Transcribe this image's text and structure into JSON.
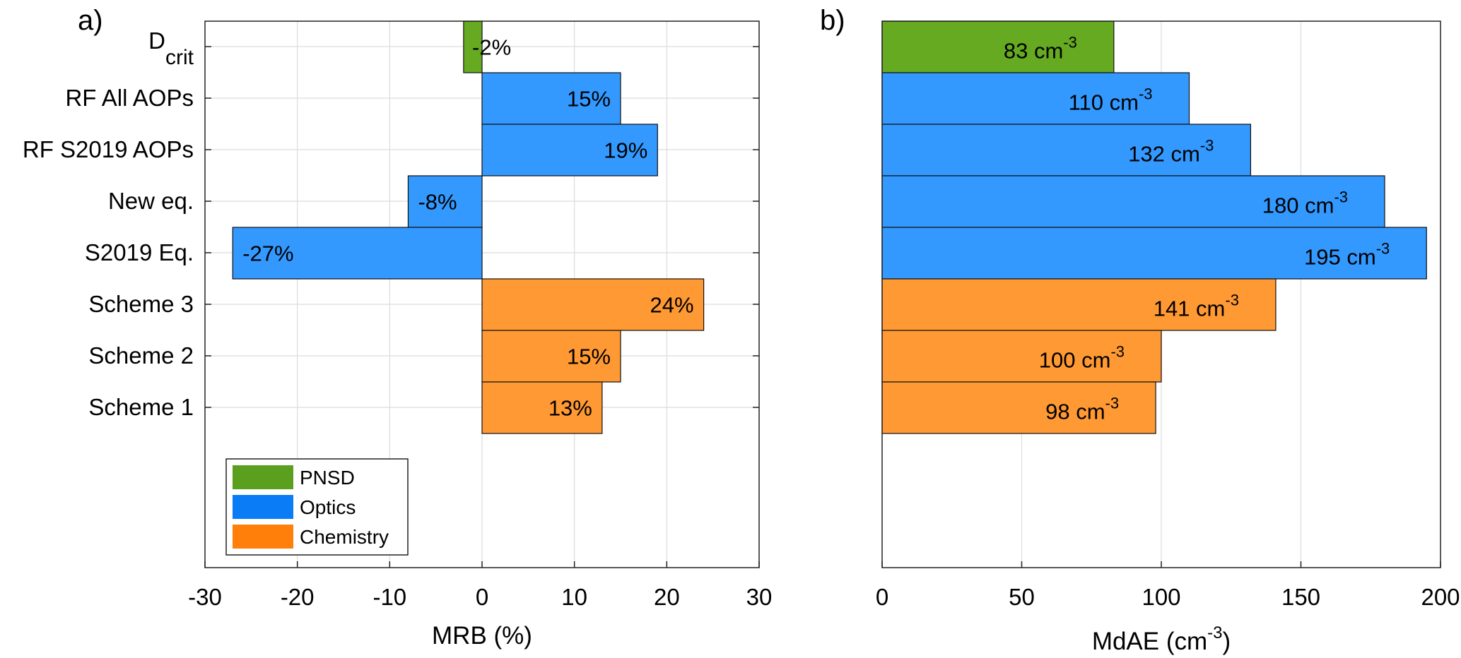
{
  "chart_data": [
    {
      "panel_label": "a)",
      "type": "bar",
      "orientation": "horizontal",
      "categories": [
        "D",
        "RF All AOPs",
        "RF S2019 AOPs",
        "New eq.",
        "S2019 Eq.",
        "Scheme 3",
        "Scheme 2",
        "Scheme 1"
      ],
      "category_subscripts": [
        "crit",
        "",
        "",
        "",
        "",
        "",
        "",
        ""
      ],
      "values": [
        -2,
        15,
        19,
        -8,
        -27,
        24,
        15,
        13
      ],
      "groups": [
        "PNSD",
        "Optics",
        "Optics",
        "Optics",
        "Optics",
        "Chemistry",
        "Chemistry",
        "Chemistry"
      ],
      "data_labels": [
        "-2%",
        "15%",
        "19%",
        "-8%",
        "-27%",
        "24%",
        "15%",
        "13%"
      ],
      "xlabel": "MRB (%)",
      "xlim": [
        -30,
        30
      ],
      "xticks": [
        "-30",
        "-20",
        "-10",
        "0",
        "10",
        "20",
        "30"
      ],
      "grid": true,
      "legend": {
        "placement": "bottom-left",
        "entries": [
          {
            "label": "PNSD",
            "color": "#5aa01e"
          },
          {
            "label": "Optics",
            "color": "#0a7cf5"
          },
          {
            "label": "Chemistry",
            "color": "#ff7f0a"
          }
        ]
      }
    },
    {
      "panel_label": "b)",
      "type": "bar",
      "orientation": "horizontal",
      "values": [
        83,
        110,
        132,
        180,
        195,
        141,
        100,
        98
      ],
      "groups": [
        "PNSD",
        "Optics",
        "Optics",
        "Optics",
        "Optics",
        "Chemistry",
        "Chemistry",
        "Chemistry"
      ],
      "data_labels": [
        "83 cm",
        "110 cm",
        "132 cm",
        "180 cm",
        "195 cm",
        "141 cm",
        "100 cm",
        "98 cm"
      ],
      "data_label_superscript": "-3",
      "xlabel": "MdAE (cm",
      "xlabel_superscript": "-3",
      "xlabel_suffix": ")",
      "xlim": [
        0,
        200
      ],
      "xticks": [
        "0",
        "50",
        "100",
        "150",
        "200"
      ],
      "grid": true
    }
  ],
  "colors": {
    "PNSD": "#66aa22",
    "Optics": "#3399ff",
    "Chemistry": "#ff9933"
  }
}
